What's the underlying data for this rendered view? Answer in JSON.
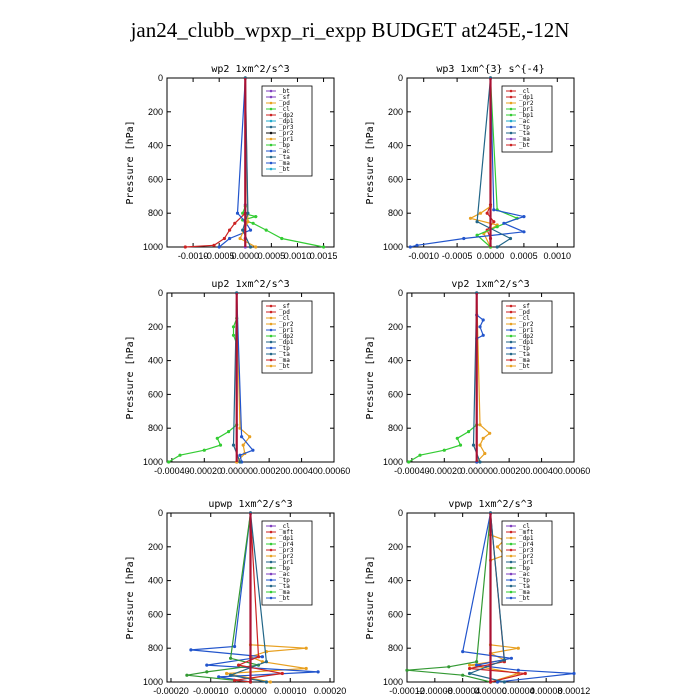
{
  "title": "jan24_clubb_wpxp_ri_expp  BUDGET at245E,-12N",
  "chart_data": [
    {
      "id": "wp2",
      "type": "line",
      "title": "wp2   1xm^2/s^3",
      "ylabel": "Pressure [hPa]",
      "xlim": [
        -0.0015,
        0.0017
      ],
      "ylim": [
        1000,
        0
      ],
      "y_ticks": [
        0,
        200,
        400,
        600,
        800,
        1000
      ],
      "x_ticks": [
        "-0.0010",
        "-0.0005",
        "0.0000",
        "0.0005",
        "0.0010",
        "0.0015"
      ],
      "x_tick_values": [
        -0.001,
        -0.0005,
        0,
        0.0005,
        0.001,
        0.0015
      ],
      "legend": [
        "_bt",
        "_sf",
        "_pd",
        "_cl",
        "_dp2",
        "_dp1",
        "_pr3",
        "_pr2",
        "_pr1",
        "_bp",
        "_ac",
        "_ta",
        "_ma",
        "_bt"
      ],
      "series": [
        {
          "name": "_sf",
          "color": "#7f3fbf",
          "p": [
            0,
            750,
            850,
            950,
            1000
          ],
          "x": [
            0,
            0,
            0,
            0,
            0
          ]
        },
        {
          "name": "_bp",
          "color": "#33cc33",
          "p": [
            0,
            760,
            800,
            820,
            840,
            860,
            900,
            950,
            1000
          ],
          "x": [
            0,
            0,
            -5e-05,
            0.0002,
            -5e-05,
            0.00015,
            0.0004,
            0.0007,
            0.0015
          ]
        },
        {
          "name": "_dp2",
          "color": "#cc2222",
          "p": [
            0,
            800,
            860,
            900,
            950,
            990,
            1000
          ],
          "x": [
            0,
            0,
            -0.0002,
            -0.0003,
            -0.0004,
            -0.0006,
            -0.00115
          ]
        },
        {
          "name": "_ac",
          "color": "#2255cc",
          "p": [
            0,
            800,
            850,
            900,
            950,
            1000
          ],
          "x": [
            0,
            -0.00015,
            0,
            0.0001,
            -0.0003,
            -0.0005
          ]
        },
        {
          "name": "_pr1",
          "color": "#e8a020",
          "p": [
            0,
            850,
            950,
            1000
          ],
          "x": [
            0,
            5e-05,
            -0.0001,
            0.0002
          ]
        },
        {
          "name": "_ta",
          "color": "#226688",
          "p": [
            0,
            800,
            900,
            1000
          ],
          "x": [
            0,
            5e-05,
            -5e-05,
            0.0001
          ]
        }
      ]
    },
    {
      "id": "wp3",
      "type": "line",
      "title": "wp3   1xm^{3} s^{-4}",
      "ylabel": "Pressure [hPa]",
      "xlim": [
        -0.00125,
        0.00125
      ],
      "ylim": [
        1000,
        0
      ],
      "y_ticks": [
        0,
        200,
        400,
        600,
        800,
        1000
      ],
      "x_ticks": [
        "-0.0010",
        "-0.0005",
        "0.0000",
        "0.0005",
        "0.0010"
      ],
      "x_tick_values": [
        -0.001,
        -0.0005,
        0,
        0.0005,
        0.001
      ],
      "legend": [
        "_cl",
        "_dp1",
        "_pr2",
        "_pr1",
        "_bp1",
        "_ac",
        "_tp",
        "_ta",
        "_ma",
        "_bt"
      ],
      "series": [
        {
          "name": "_cl",
          "color": "#cc2222",
          "p": [
            0,
            750,
            800,
            850,
            900,
            950,
            1000
          ],
          "x": [
            0,
            0,
            -5e-05,
            5e-05,
            -5e-05,
            0,
            0
          ]
        },
        {
          "name": "_pr2",
          "color": "#e8a020",
          "p": [
            0,
            760,
            800,
            830,
            870,
            920,
            1000
          ],
          "x": [
            0,
            0,
            -0.00015,
            -0.0003,
            0.0001,
            -0.0001,
            0
          ]
        },
        {
          "name": "_bp1",
          "color": "#33cc33",
          "p": [
            0,
            780,
            830,
            880,
            930,
            1000
          ],
          "x": [
            0,
            0.0001,
            0.0004,
            0.0001,
            -0.0002,
            0
          ]
        },
        {
          "name": "_tp",
          "color": "#2255cc",
          "p": [
            0,
            780,
            820,
            860,
            910,
            950,
            990,
            1000
          ],
          "x": [
            0,
            5e-05,
            0.0005,
            0.0002,
            0.0005,
            -0.0004,
            -0.0011,
            -0.0012
          ]
        },
        {
          "name": "_ta",
          "color": "#226688",
          "p": [
            0,
            850,
            950,
            1000
          ],
          "x": [
            0,
            -0.0002,
            0.0003,
            0.0001
          ]
        }
      ]
    },
    {
      "id": "up2",
      "type": "line",
      "title": "up2   1xm^2/s^3",
      "ylabel": "Pressure [hPa]",
      "xlim": [
        -0.00043,
        0.0006
      ],
      "ylim": [
        1000,
        0
      ],
      "y_ticks": [
        0,
        200,
        400,
        600,
        800,
        1000
      ],
      "x_ticks": [
        "-0.00040",
        "-0.00020",
        "0.00000",
        "0.00020",
        "0.00040",
        "0.00060"
      ],
      "x_tick_values": [
        -0.0004,
        -0.0002,
        0,
        0.0002,
        0.0004,
        0.0006
      ],
      "legend": [
        "_sf",
        "_pd",
        "_cl",
        "_pr2",
        "_pr1",
        "_dp2",
        "_dp1",
        "_tp",
        "_ta",
        "_ma",
        "_bt"
      ],
      "series": [
        {
          "name": "_sf",
          "color": "#cc2222",
          "p": [
            0,
            1000
          ],
          "x": [
            0,
            0
          ]
        },
        {
          "name": "_dp2",
          "color": "#33cc33",
          "p": [
            0,
            150,
            200,
            250,
            300,
            780,
            820,
            860,
            900,
            930,
            960,
            1000
          ],
          "x": [
            0,
            0,
            -2e-05,
            -2e-05,
            0,
            0,
            -5e-05,
            -0.00012,
            -0.0001,
            -0.0002,
            -0.00035,
            -0.00042
          ]
        },
        {
          "name": "_pr2",
          "color": "#e8a020",
          "p": [
            0,
            800,
            850,
            900,
            950,
            1000
          ],
          "x": [
            0,
            2e-05,
            8e-05,
            4e-05,
            5e-05,
            0
          ]
        },
        {
          "name": "_tp",
          "color": "#2255cc",
          "p": [
            0,
            850,
            930,
            960,
            1000
          ],
          "x": [
            0,
            3e-05,
            0.0001,
            2e-05,
            3e-05
          ]
        },
        {
          "name": "_ta",
          "color": "#226688",
          "p": [
            0,
            900,
            1000
          ],
          "x": [
            0,
            -2e-05,
            2e-05
          ]
        }
      ]
    },
    {
      "id": "vp2",
      "type": "line",
      "title": "vp2   1xm^2/s^3",
      "ylabel": "Pressure [hPa]",
      "xlim": [
        -0.00043,
        0.0006
      ],
      "ylim": [
        1000,
        0
      ],
      "y_ticks": [
        0,
        200,
        400,
        600,
        800,
        1000
      ],
      "x_ticks": [
        "-0.00040",
        "-0.00020",
        "0.00000",
        "0.00020",
        "0.00040",
        "0.00060"
      ],
      "x_tick_values": [
        -0.0004,
        -0.0002,
        0,
        0.0002,
        0.0004,
        0.0006
      ],
      "legend": [
        "_sf",
        "_pd",
        "_cl",
        "_pr2",
        "_pr1",
        "_dp2",
        "_dp1",
        "_tp",
        "_ta",
        "_ma",
        "_bt"
      ],
      "series": [
        {
          "name": "_sf",
          "color": "#cc2222",
          "p": [
            0,
            1000
          ],
          "x": [
            0,
            0
          ]
        },
        {
          "name": "_dp2",
          "color": "#33cc33",
          "p": [
            0,
            780,
            820,
            860,
            900,
            930,
            960,
            1000
          ],
          "x": [
            0,
            0,
            -5e-05,
            -0.00012,
            -0.0001,
            -0.0002,
            -0.00035,
            -0.00042
          ]
        },
        {
          "name": "_pr2",
          "color": "#e8a020",
          "p": [
            0,
            780,
            830,
            860,
            900,
            950,
            1000
          ],
          "x": [
            0,
            2e-05,
            8e-05,
            4e-05,
            2e-05,
            5e-05,
            0
          ]
        },
        {
          "name": "_tp",
          "color": "#2255cc",
          "p": [
            0,
            130,
            160,
            200,
            250,
            270,
            1000
          ],
          "x": [
            0,
            0,
            4e-05,
            2e-05,
            4e-05,
            0,
            0
          ]
        },
        {
          "name": "_ta",
          "color": "#226688",
          "p": [
            0,
            900,
            1000
          ],
          "x": [
            0,
            -2e-05,
            2e-05
          ]
        }
      ]
    },
    {
      "id": "upwp",
      "type": "line",
      "title": "upwp   1xm^2/s^3",
      "ylabel": "Pressure [hPa]",
      "xlim": [
        -0.00021,
        0.00021
      ],
      "ylim": [
        1000,
        0
      ],
      "y_ticks": [
        0,
        200,
        400,
        600,
        800,
        1000
      ],
      "x_ticks": [
        "-0.00020",
        "-0.00010",
        "0.00000",
        "0.00010",
        "0.00020"
      ],
      "x_tick_values": [
        -0.0002,
        -0.0001,
        0,
        0.0001,
        0.0002
      ],
      "legend": [
        "_cl",
        "_mft",
        "_dp1",
        "_pr4",
        "_pr3",
        "_pr2",
        "_pr1",
        "_bp",
        "_ac",
        "_tp",
        "_ta",
        "_ma",
        "_bt"
      ],
      "series": [
        {
          "name": "_cl",
          "color": "#7f3fbf",
          "p": [
            0,
            1000
          ],
          "x": [
            0,
            0
          ]
        },
        {
          "name": "_pr2",
          "color": "#e8a020",
          "p": [
            0,
            780,
            800,
            820,
            850,
            880,
            920,
            950,
            1000
          ],
          "x": [
            0,
            0,
            0.00014,
            4e-05,
            0,
            3e-05,
            0.00014,
            -6e-05,
            5e-05
          ]
        },
        {
          "name": "_tp",
          "color": "#2255cc",
          "p": [
            0,
            790,
            810,
            850,
            900,
            940,
            970,
            1000
          ],
          "x": [
            0,
            -4e-05,
            -0.00015,
            3e-05,
            -0.00011,
            0.00017,
            -8e-05,
            0
          ]
        },
        {
          "name": "_bp",
          "color": "#339933",
          "p": [
            0,
            860,
            900,
            940,
            960,
            1000
          ],
          "x": [
            0,
            -5e-05,
            2e-05,
            -0.00011,
            -0.00016,
            0
          ]
        },
        {
          "name": "_pr3",
          "color": "#cc2222",
          "p": [
            0,
            850,
            900,
            950,
            990,
            1000
          ],
          "x": [
            0,
            2e-05,
            -3e-05,
            8e-05,
            -4e-05,
            0
          ]
        },
        {
          "name": "_ta",
          "color": "#226688",
          "p": [
            0,
            880,
            960,
            1000
          ],
          "x": [
            0,
            4e-05,
            -5e-05,
            4e-05
          ]
        }
      ]
    },
    {
      "id": "vpwp",
      "type": "line",
      "title": "vpwp   1xm^2/s^3",
      "ylabel": "Pressure [hPa]",
      "xlim": [
        -0.00012,
        0.00012
      ],
      "ylim": [
        1000,
        0
      ],
      "y_ticks": [
        0,
        200,
        400,
        600,
        800,
        1000
      ],
      "x_ticks": [
        "-0.00012",
        "-0.00008",
        "-0.00004",
        "0.00000",
        "0.00004",
        "0.00008",
        "0.00012"
      ],
      "x_tick_values": [
        -0.00012,
        -8e-05,
        -4e-05,
        0,
        4e-05,
        8e-05,
        0.00012
      ],
      "legend": [
        "_cl",
        "_mft",
        "_dp1",
        "_pr4",
        "_pr3",
        "_pr2",
        "_pr1",
        "_bp",
        "_ac",
        "_tp",
        "_ta",
        "_ma",
        "_bt"
      ],
      "series": [
        {
          "name": "_cl",
          "color": "#7f3fbf",
          "p": [
            0,
            1000
          ],
          "x": [
            0,
            0
          ]
        },
        {
          "name": "_pr2",
          "color": "#e8a020",
          "p": [
            0,
            130,
            160,
            200,
            250,
            280,
            780,
            800,
            830,
            870,
            900,
            950,
            1000
          ],
          "x": [
            0,
            0,
            2e-05,
            1e-05,
            2e-05,
            0,
            0,
            4e-05,
            0,
            2e-05,
            -3e-05,
            4e-05,
            0
          ]
        },
        {
          "name": "_tp",
          "color": "#2255cc",
          "p": [
            0,
            820,
            860,
            900,
            930,
            950,
            1000
          ],
          "x": [
            0,
            -4e-05,
            3e-05,
            -2e-05,
            4e-05,
            0.00012,
            1e-05
          ]
        },
        {
          "name": "_bp",
          "color": "#339933",
          "p": [
            0,
            880,
            910,
            930,
            960,
            1000
          ],
          "x": [
            0,
            -2e-05,
            -6e-05,
            -0.00012,
            -4e-05,
            0
          ]
        },
        {
          "name": "_pr3",
          "color": "#cc2222",
          "p": [
            0,
            880,
            920,
            950,
            1000
          ],
          "x": [
            0,
            2e-05,
            -3e-05,
            5e-05,
            0
          ]
        },
        {
          "name": "_ta",
          "color": "#226688",
          "p": [
            0,
            870,
            950,
            1000
          ],
          "x": [
            0,
            2e-05,
            -3e-05,
            2e-05
          ]
        }
      ]
    }
  ]
}
